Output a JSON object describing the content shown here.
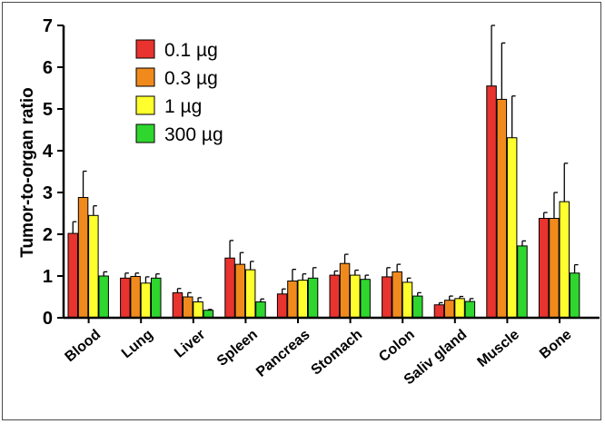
{
  "chart_data": {
    "type": "bar",
    "ylabel": "Tumor-to-organ ratio",
    "xlabel": "",
    "title": "",
    "ylim": [
      0,
      7
    ],
    "yticks": [
      0,
      1,
      2,
      3,
      4,
      5,
      6,
      7
    ],
    "legend_position": "top-left",
    "error_bars": true,
    "categories": [
      "Blood",
      "Lung",
      "Liver",
      "Spleen",
      "Pancreas",
      "Stomach",
      "Colon",
      "Saliv gland",
      "Muscle",
      "Bone"
    ],
    "series": [
      {
        "name": "0.1 µg",
        "color": "#e8332e",
        "values": [
          2.02,
          0.95,
          0.6,
          1.43,
          0.57,
          1.02,
          0.98,
          0.31,
          5.55,
          2.38
        ],
        "errors": [
          0.28,
          0.12,
          0.1,
          0.42,
          0.12,
          0.1,
          0.22,
          0.05,
          1.45,
          0.14
        ]
      },
      {
        "name": "0.3 µg",
        "color": "#f18a1d",
        "values": [
          2.88,
          0.99,
          0.5,
          1.28,
          0.88,
          1.3,
          1.1,
          0.42,
          5.23,
          2.38
        ],
        "errors": [
          0.63,
          0.08,
          0.1,
          0.28,
          0.28,
          0.22,
          0.18,
          0.1,
          1.35,
          0.62
        ]
      },
      {
        "name": "1 µg",
        "color": "#ffff2e",
        "values": [
          2.45,
          0.83,
          0.38,
          1.15,
          0.9,
          1.02,
          0.85,
          0.46,
          4.31,
          2.78
        ],
        "errors": [
          0.23,
          0.15,
          0.1,
          0.2,
          0.15,
          0.12,
          0.1,
          0.05,
          1.0,
          0.92
        ]
      },
      {
        "name": "300 µg",
        "color": "#2ed62e",
        "values": [
          1.0,
          0.95,
          0.18,
          0.38,
          0.95,
          0.92,
          0.52,
          0.39,
          1.72,
          1.07
        ],
        "errors": [
          0.1,
          0.1,
          0.02,
          0.07,
          0.25,
          0.1,
          0.08,
          0.07,
          0.12,
          0.2
        ]
      }
    ]
  }
}
